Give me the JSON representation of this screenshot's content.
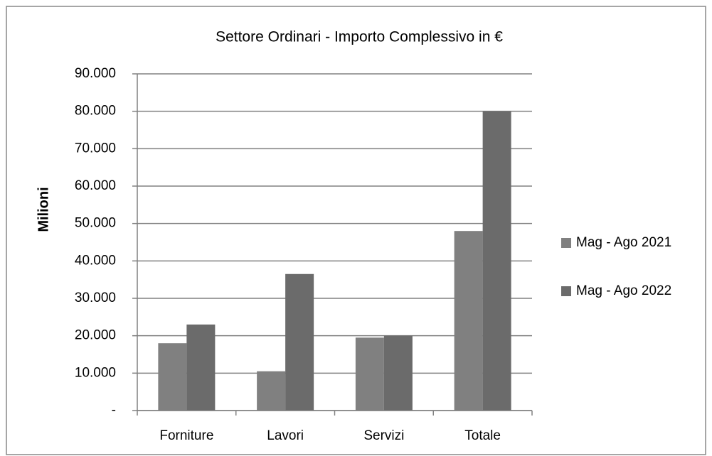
{
  "chart_data": {
    "type": "bar",
    "title": "Settore Ordinari - Importo Complessivo in €",
    "y_label": "Milioni",
    "categories": [
      "Forniture",
      "Lavori",
      "Servizi",
      "Totale"
    ],
    "series": [
      {
        "name": "Mag - Ago 2021",
        "color": "#808080",
        "values": [
          18000,
          10500,
          19500,
          48000
        ]
      },
      {
        "name": "Mag - Ago 2022",
        "color": "#6b6b6b",
        "values": [
          23000,
          36500,
          20000,
          80000
        ]
      }
    ],
    "ylim": [
      0,
      90000
    ],
    "yticks": [
      {
        "value": 0,
        "label": "-"
      },
      {
        "value": 10000,
        "label": "10.000"
      },
      {
        "value": 20000,
        "label": "20.000"
      },
      {
        "value": 30000,
        "label": "30.000"
      },
      {
        "value": 40000,
        "label": "40.000"
      },
      {
        "value": 50000,
        "label": "50.000"
      },
      {
        "value": 60000,
        "label": "60.000"
      },
      {
        "value": 70000,
        "label": "70.000"
      },
      {
        "value": 80000,
        "label": "80.000"
      },
      {
        "value": 90000,
        "label": "90.000"
      }
    ],
    "grid": true,
    "legend": "right"
  }
}
